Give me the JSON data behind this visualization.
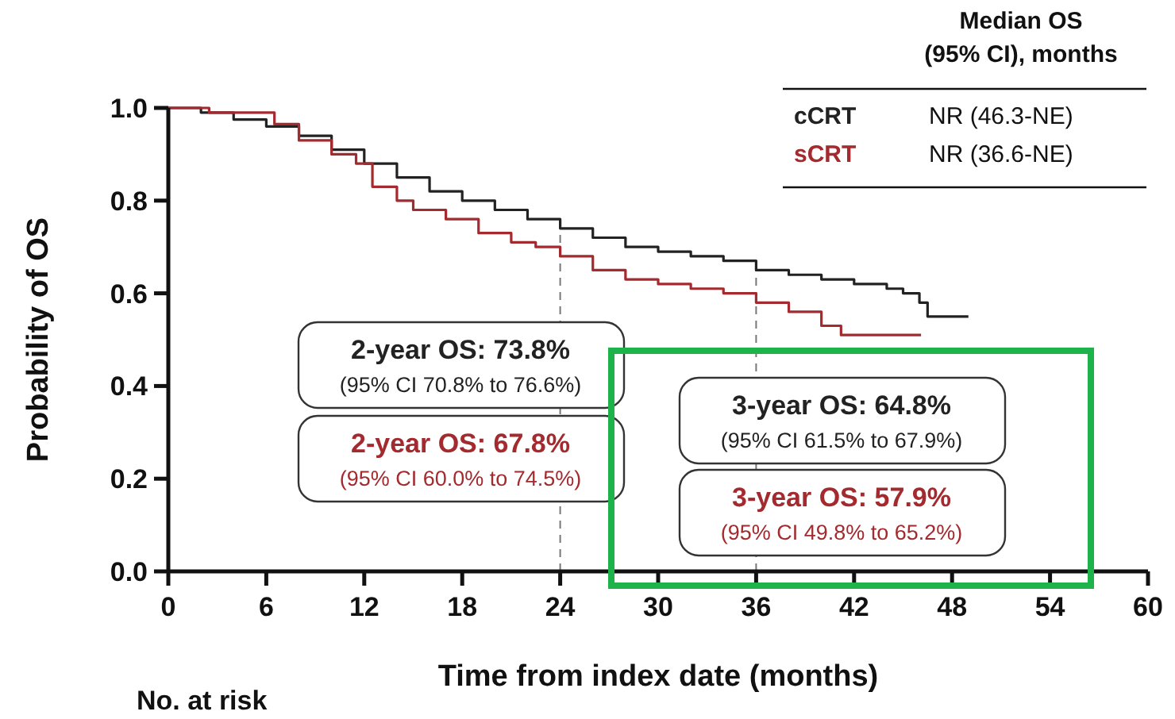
{
  "chart_data": {
    "type": "step",
    "xlabel": "Time from index date (months)",
    "ylabel": "Probability of OS",
    "legend_title": "Median OS\n(95% CI), months",
    "legend": "top right",
    "xlim": [
      0,
      60
    ],
    "xticks": [
      0,
      6,
      12,
      18,
      24,
      30,
      36,
      42,
      48,
      54,
      60
    ],
    "ylim": [
      0,
      1
    ],
    "yticks": [
      {
        "value": 0,
        "label": "0.0"
      },
      {
        "value": 0.2,
        "label": "0.2"
      },
      {
        "value": 0.4,
        "label": "0.4"
      },
      {
        "value": 0.6,
        "label": "0.6"
      },
      {
        "value": 0.8,
        "label": "0.8"
      },
      {
        "value": 1,
        "label": "1.0"
      }
    ],
    "grid": false,
    "series": [
      {
        "name": "cCRT",
        "color": "#222222",
        "x": [
          0,
          2,
          4,
          6,
          8,
          10,
          12,
          14,
          16,
          18,
          20,
          22,
          24,
          26,
          28,
          30,
          32,
          34,
          36,
          38,
          40,
          42,
          44,
          45,
          46,
          46.5,
          49
        ],
        "values": [
          1,
          0.99,
          0.975,
          0.96,
          0.94,
          0.91,
          0.88,
          0.85,
          0.82,
          0.8,
          0.78,
          0.76,
          0.74,
          0.72,
          0.7,
          0.69,
          0.68,
          0.67,
          0.65,
          0.64,
          0.63,
          0.62,
          0.61,
          0.6,
          0.58,
          0.55,
          0.55
        ]
      },
      {
        "name": "sCRT",
        "color": "#a32a2e",
        "x": [
          0,
          2.5,
          6.5,
          8,
          10,
          11.5,
          12.5,
          14,
          15,
          17,
          19,
          21,
          22.5,
          24,
          26,
          28,
          30,
          32,
          34,
          36,
          38,
          40,
          41.2,
          46.1
        ],
        "values": [
          1,
          0.99,
          0.965,
          0.93,
          0.9,
          0.88,
          0.83,
          0.8,
          0.78,
          0.76,
          0.73,
          0.71,
          0.7,
          0.68,
          0.65,
          0.63,
          0.62,
          0.61,
          0.6,
          0.58,
          0.56,
          0.53,
          0.51,
          0.51
        ]
      }
    ],
    "ref_lines": [
      {
        "axis": "x",
        "value": 24,
        "color": "#777777",
        "line_style": "dashed"
      },
      {
        "axis": "x",
        "value": 36,
        "color": "#777777",
        "line_style": "dashed"
      }
    ],
    "annotations": [
      "2-year OS: 73.8%",
      "(95% CI 70.8% to 76.6%)",
      "2-year OS: 67.8%",
      "(95% CI 60.0% to 74.5%)",
      "3-year OS: 64.8%",
      "(95% CI 61.5% to 67.9%)",
      "3-year OS: 57.9%",
      "(95% CI 49.8% to 65.2%)",
      "NR (46.3-NE)",
      "NR (36.6-NE)",
      "No. at risk"
    ]
  }
}
